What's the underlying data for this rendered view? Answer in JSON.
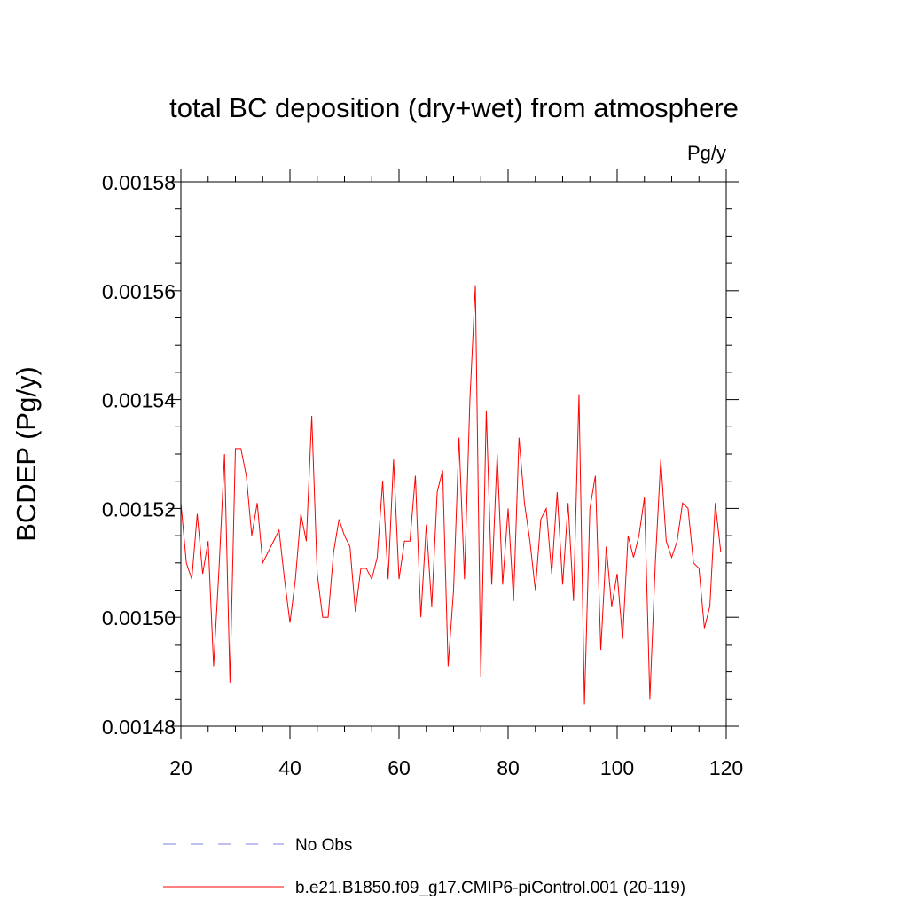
{
  "chart_data": {
    "type": "line",
    "title": "total BC deposition (dry+wet) from atmosphere",
    "units": "Pg/y",
    "xlabel": "",
    "ylabel": "BCDEP  (Pg/y)",
    "xlim": [
      20,
      120
    ],
    "ylim": [
      0.00148,
      0.00158
    ],
    "x_ticks": [
      20,
      40,
      60,
      80,
      100,
      120
    ],
    "x_tick_labels": [
      "20",
      "40",
      "60",
      "80",
      "100",
      "120"
    ],
    "y_ticks": [
      0.00148,
      0.0015,
      0.00152,
      0.00154,
      0.00156,
      0.00158
    ],
    "y_tick_labels": [
      "0.00148",
      "0.00150",
      "0.00152",
      "0.00154",
      "0.00156",
      "0.00158"
    ],
    "grid": false,
    "legend_position": "bottom",
    "legend": [
      {
        "label": "No Obs",
        "color": "#8080e0",
        "style": "dashed"
      },
      {
        "label": "b.e21.B1850.f09_g17.CMIP6-piControl.001 (20-119)",
        "color": "#ff0000",
        "style": "solid"
      }
    ],
    "series": [
      {
        "color": "#ff0000",
        "x_start": 20,
        "x_step": 1,
        "values": [
          0.001521,
          0.00151,
          0.001507,
          0.001519,
          0.001508,
          0.001514,
          0.001491,
          0.001509,
          0.00153,
          0.001488,
          0.001531,
          0.001531,
          0.001526,
          0.001515,
          0.001521,
          0.00151,
          0.001512,
          0.001514,
          0.001516,
          0.001507,
          0.001499,
          0.001507,
          0.001519,
          0.001514,
          0.001537,
          0.001508,
          0.0015,
          0.0015,
          0.001512,
          0.001518,
          0.001515,
          0.001513,
          0.001501,
          0.001509,
          0.001509,
          0.001507,
          0.001511,
          0.001525,
          0.001507,
          0.001529,
          0.001507,
          0.001514,
          0.001514,
          0.001526,
          0.0015,
          0.001517,
          0.001502,
          0.001523,
          0.001527,
          0.001491,
          0.001505,
          0.001533,
          0.001507,
          0.00154,
          0.001561,
          0.001489,
          0.001538,
          0.001506,
          0.00153,
          0.001506,
          0.00152,
          0.001503,
          0.001533,
          0.001521,
          0.001514,
          0.001505,
          0.001518,
          0.00152,
          0.001508,
          0.001523,
          0.001506,
          0.001521,
          0.001503,
          0.001541,
          0.001484,
          0.00152,
          0.001526,
          0.001494,
          0.001513,
          0.001502,
          0.001508,
          0.001496,
          0.001515,
          0.001511,
          0.001515,
          0.001522,
          0.001485,
          0.00151,
          0.001529,
          0.001514,
          0.001511,
          0.001514,
          0.001521,
          0.00152,
          0.00151,
          0.001509,
          0.001498,
          0.001502,
          0.001521,
          0.001512
        ]
      }
    ]
  }
}
